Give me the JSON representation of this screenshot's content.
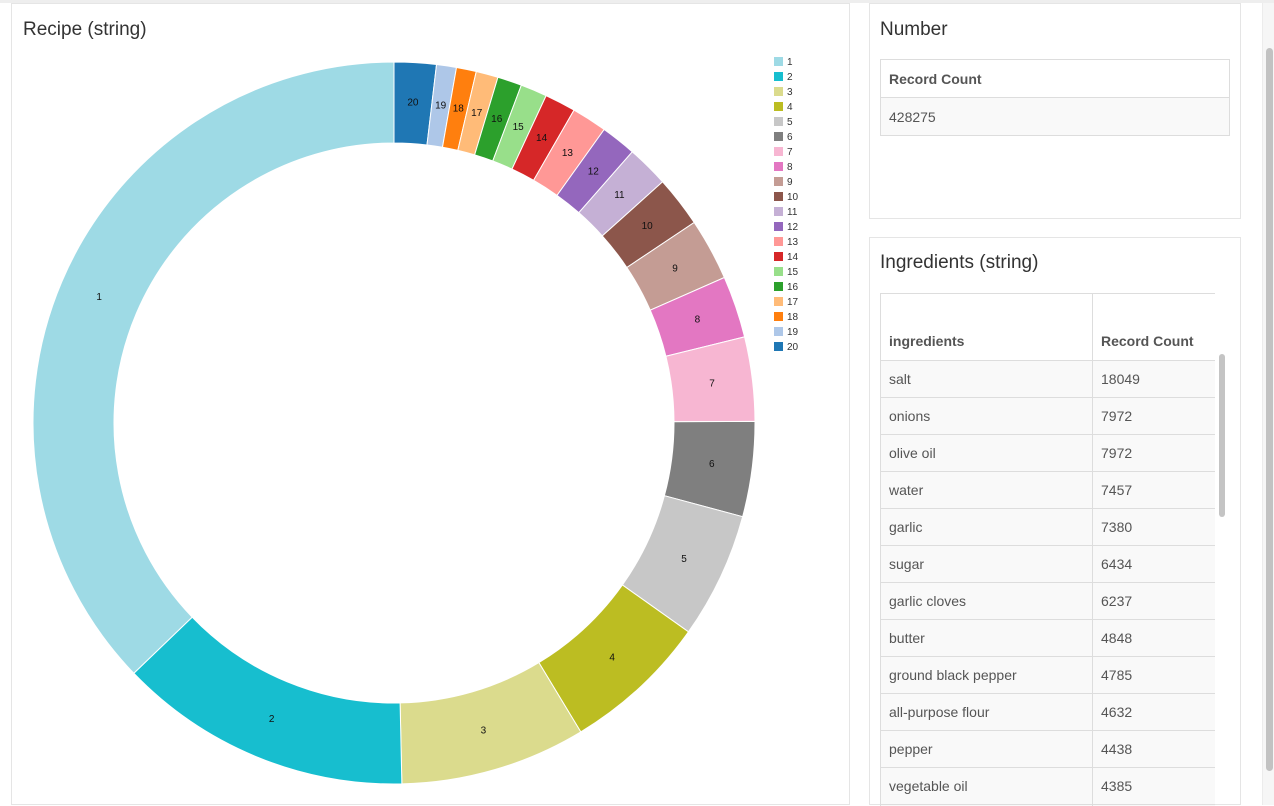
{
  "recipe_panel": {
    "title": "Recipe (string)"
  },
  "number_panel": {
    "title": "Number",
    "header": "Record Count",
    "value": "428275"
  },
  "ingredients_panel": {
    "title": "Ingredients (string)",
    "columns": [
      "ingredients",
      "Record Count"
    ],
    "rows": [
      [
        "salt",
        "18049"
      ],
      [
        "onions",
        "7972"
      ],
      [
        "olive oil",
        "7972"
      ],
      [
        "water",
        "7457"
      ],
      [
        "garlic",
        "7380"
      ],
      [
        "sugar",
        "6434"
      ],
      [
        "garlic cloves",
        "6237"
      ],
      [
        "butter",
        "4848"
      ],
      [
        "ground black pepper",
        "4785"
      ],
      [
        "all-purpose flour",
        "4632"
      ],
      [
        "pepper",
        "4438"
      ],
      [
        "vegetable oil",
        "4385"
      ],
      [
        "",
        ""
      ]
    ]
  },
  "chart_data": {
    "type": "pie",
    "donut": true,
    "title": "Recipe (string)",
    "legend": "top-right",
    "categories": [
      "1",
      "2",
      "3",
      "4",
      "5",
      "6",
      "7",
      "8",
      "9",
      "10",
      "11",
      "12",
      "13",
      "14",
      "15",
      "16",
      "17",
      "18",
      "19",
      "20"
    ],
    "values": [
      37.6,
      13.3,
      8.4,
      6.6,
      5.7,
      4.3,
      3.8,
      2.8,
      2.8,
      2.3,
      1.9,
      1.6,
      1.6,
      1.4,
      1.2,
      1.1,
      1.0,
      0.9,
      0.9,
      1.9
    ],
    "colors": [
      "#9edae5",
      "#17becf",
      "#dbdb8d",
      "#bcbd22",
      "#c7c7c7",
      "#7f7f7f",
      "#f7b6d2",
      "#e377c2",
      "#c49c94",
      "#8c564b",
      "#c5b0d5",
      "#9467bd",
      "#ff9896",
      "#d62728",
      "#98df8a",
      "#2ca02c",
      "#ffbb78",
      "#ff7f0e",
      "#aec7e8",
      "#1f77b4"
    ]
  }
}
